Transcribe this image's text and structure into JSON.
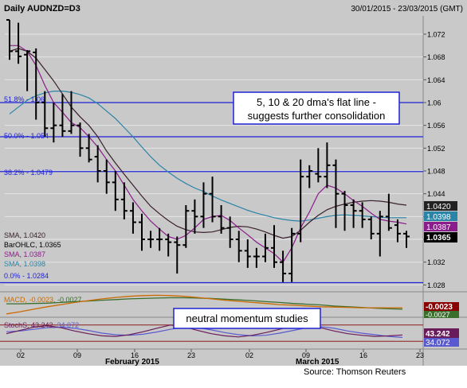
{
  "header": {
    "title": "Daily AUDNZD=D3",
    "date_range": "30/01/2015 - 23/03/2015 (GMT)"
  },
  "colors": {
    "background": "#c9c9c9",
    "fib_line": "#1f23d6",
    "sma5": "#8b1c8c",
    "sma10": "#3a1f2e",
    "sma20": "#2a84a8",
    "ohlc": "#000000",
    "macd_main": "#cc6a00",
    "macd_signal": "#3a6e2c",
    "stoch_k": "#6a1b5a",
    "stoch_d": "#5a5ad0",
    "annotation_border": "#1f23d6"
  },
  "annotations": {
    "main": [
      "5, 10 & 20 dma's flat line -",
      "suggests further consolidation"
    ],
    "momentum": "neutral momentum studies"
  },
  "legend": {
    "sma1": "SMA, 1.0420",
    "barohlc": "BarOHLC, 1.0365",
    "sma2": "SMA, 1.0387",
    "sma3": "SMA, 1.0398"
  },
  "fib_labels": {
    "f518": "51.8% - 1.06",
    "f500": "50.0% - 1.054",
    "f382": "38.2% - 1.0479",
    "f0": "0.0% - 1.0284"
  },
  "price_tags": {
    "sma1": "1.0420",
    "sma3": "1.0398",
    "sma2": "1.0387",
    "close": "1.0365"
  },
  "macd": {
    "label_value": "MACD, -0.0023",
    "label_signal": ", -0.0027",
    "tag_main": "-0.0023",
    "tag_signal": "-0.0027"
  },
  "stoch": {
    "label_k": "StochS, 43.242",
    "label_d": ", 34.072",
    "tag_k": "43.242",
    "tag_d": "34.072"
  },
  "x_axis": {
    "day_ticks": [
      "02",
      "09",
      "16",
      "23",
      "02",
      "09",
      "16",
      "23"
    ],
    "months": [
      "February 2015",
      "March 2015"
    ]
  },
  "source": "Source: Thomson Reuters",
  "chart_data": {
    "type": "ohlc",
    "title": "Daily AUDNZD=D3",
    "ylim": [
      1.0268,
      1.0752
    ],
    "y_ticks": [
      "1.072",
      "1.068",
      "1.064",
      "1.06",
      "1.056",
      "1.052",
      "1.048",
      "1.044",
      "1.04",
      "1.036",
      "1.032",
      "1.028"
    ],
    "fibonacci_levels": [
      {
        "label": "51.8%",
        "value": 1.06
      },
      {
        "label": "50.0%",
        "value": 1.054
      },
      {
        "label": "38.2%",
        "value": 1.0479
      },
      {
        "label": "0.0%",
        "value": 1.0284
      }
    ],
    "bars": [
      {
        "o": 1.0745,
        "h": 1.0745,
        "l": 1.0675,
        "c": 1.069
      },
      {
        "o": 1.069,
        "h": 1.074,
        "l": 1.0668,
        "c": 1.0681
      },
      {
        "o": 1.0684,
        "h": 1.0692,
        "l": 1.062,
        "c": 1.069
      },
      {
        "o": 1.0688,
        "h": 1.0695,
        "l": 1.057,
        "c": 1.06
      },
      {
        "o": 1.06,
        "h": 1.062,
        "l": 1.054,
        "c": 1.0555
      },
      {
        "o": 1.0555,
        "h": 1.06,
        "l": 1.053,
        "c": 1.056
      },
      {
        "o": 1.056,
        "h": 1.0615,
        "l": 1.054,
        "c": 1.055
      },
      {
        "o": 1.055,
        "h": 1.062,
        "l": 1.0545,
        "c": 1.056
      },
      {
        "o": 1.056,
        "h": 1.0565,
        "l": 1.0505,
        "c": 1.052
      },
      {
        "o": 1.052,
        "h": 1.0545,
        "l": 1.0495,
        "c": 1.05
      },
      {
        "o": 1.0505,
        "h": 1.0525,
        "l": 1.046,
        "c": 1.048
      },
      {
        "o": 1.048,
        "h": 1.05,
        "l": 1.044,
        "c": 1.046
      },
      {
        "o": 1.046,
        "h": 1.048,
        "l": 1.041,
        "c": 1.043
      },
      {
        "o": 1.043,
        "h": 1.046,
        "l": 1.0395,
        "c": 1.041
      },
      {
        "o": 1.041,
        "h": 1.0425,
        "l": 1.037,
        "c": 1.039
      },
      {
        "o": 1.039,
        "h": 1.0405,
        "l": 1.034,
        "c": 1.036
      },
      {
        "o": 1.036,
        "h": 1.0375,
        "l": 1.0345,
        "c": 1.036
      },
      {
        "o": 1.036,
        "h": 1.038,
        "l": 1.034,
        "c": 1.036
      },
      {
        "o": 1.036,
        "h": 1.037,
        "l": 1.033,
        "c": 1.0355
      },
      {
        "o": 1.0355,
        "h": 1.0365,
        "l": 1.03,
        "c": 1.035
      },
      {
        "o": 1.035,
        "h": 1.042,
        "l": 1.0345,
        "c": 1.041
      },
      {
        "o": 1.041,
        "h": 1.043,
        "l": 1.037,
        "c": 1.04
      },
      {
        "o": 1.04,
        "h": 1.046,
        "l": 1.038,
        "c": 1.044
      },
      {
        "o": 1.044,
        "h": 1.047,
        "l": 1.039,
        "c": 1.04
      },
      {
        "o": 1.04,
        "h": 1.042,
        "l": 1.037,
        "c": 1.038
      },
      {
        "o": 1.038,
        "h": 1.04,
        "l": 1.0345,
        "c": 1.036
      },
      {
        "o": 1.036,
        "h": 1.0375,
        "l": 1.032,
        "c": 1.034
      },
      {
        "o": 1.034,
        "h": 1.036,
        "l": 1.031,
        "c": 1.033
      },
      {
        "o": 1.033,
        "h": 1.0345,
        "l": 1.031,
        "c": 1.033
      },
      {
        "o": 1.033,
        "h": 1.037,
        "l": 1.032,
        "c": 1.0345
      },
      {
        "o": 1.0345,
        "h": 1.0385,
        "l": 1.031,
        "c": 1.032
      },
      {
        "o": 1.032,
        "h": 1.034,
        "l": 1.0285,
        "c": 1.03
      },
      {
        "o": 1.03,
        "h": 1.038,
        "l": 1.0285,
        "c": 1.037
      },
      {
        "o": 1.037,
        "h": 1.05,
        "l": 1.0355,
        "c": 1.047
      },
      {
        "o": 1.047,
        "h": 1.049,
        "l": 1.045,
        "c": 1.048
      },
      {
        "o": 1.0475,
        "h": 1.052,
        "l": 1.046,
        "c": 1.047
      },
      {
        "o": 1.047,
        "h": 1.053,
        "l": 1.045,
        "c": 1.049
      },
      {
        "o": 1.049,
        "h": 1.05,
        "l": 1.038,
        "c": 1.044
      },
      {
        "o": 1.044,
        "h": 1.0445,
        "l": 1.0375,
        "c": 1.042
      },
      {
        "o": 1.042,
        "h": 1.043,
        "l": 1.038,
        "c": 1.041
      },
      {
        "o": 1.041,
        "h": 1.0425,
        "l": 1.038,
        "c": 1.0395
      },
      {
        "o": 1.0395,
        "h": 1.04,
        "l": 1.036,
        "c": 1.037
      },
      {
        "o": 1.037,
        "h": 1.041,
        "l": 1.033,
        "c": 1.04
      },
      {
        "o": 1.04,
        "h": 1.044,
        "l": 1.0375,
        "c": 1.038
      },
      {
        "o": 1.0385,
        "h": 1.0395,
        "l": 1.0355,
        "c": 1.037
      },
      {
        "o": 1.037,
        "h": 1.0375,
        "l": 1.0345,
        "c": 1.0365
      }
    ],
    "sma_20": [
      1.058,
      1.0592,
      1.0604,
      1.0612,
      1.0617,
      1.062,
      1.062,
      1.0618,
      1.0614,
      1.0608,
      1.0598,
      1.0585,
      1.0572,
      1.0556,
      1.054,
      1.0522,
      1.0505,
      1.049,
      1.0478,
      1.0467,
      1.0458,
      1.045,
      1.0444,
      1.0436,
      1.0429,
      1.0423,
      1.0417,
      1.0411,
      1.0406,
      1.0402,
      1.0398,
      1.0395,
      1.0393,
      1.0392,
      1.0394,
      1.0397,
      1.04,
      1.0402,
      1.0403,
      1.0402,
      1.0401,
      1.04,
      1.0399,
      1.0398,
      1.0398,
      1.0398
    ],
    "sma_10": [
      1.069,
      1.0695,
      1.069,
      1.0678,
      1.0658,
      1.0638,
      1.0615,
      1.0592,
      1.0575,
      1.056,
      1.054,
      1.0515,
      1.0494,
      1.0474,
      1.0455,
      1.0436,
      1.0418,
      1.0405,
      1.0393,
      1.0383,
      1.0377,
      1.0373,
      1.0372,
      1.0373,
      1.0377,
      1.0381,
      1.0383,
      1.0382,
      1.0378,
      1.0373,
      1.0367,
      1.0362,
      1.0365,
      1.0376,
      1.039,
      1.0402,
      1.0412,
      1.0418,
      1.0422,
      1.0425,
      1.0427,
      1.0428,
      1.0427,
      1.0425,
      1.0422,
      1.042
    ],
    "sma_5": [
      1.07,
      1.07,
      1.069,
      1.0665,
      1.063,
      1.06,
      1.0583,
      1.0565,
      1.0556,
      1.054,
      1.0522,
      1.05,
      1.048,
      1.0455,
      1.043,
      1.041,
      1.0392,
      1.0378,
      1.0365,
      1.036,
      1.0367,
      1.038,
      1.0395,
      1.04,
      1.0402,
      1.0393,
      1.038,
      1.0368,
      1.0355,
      1.0345,
      1.0335,
      1.032,
      1.0345,
      1.038,
      1.0408,
      1.044,
      1.0455,
      1.045,
      1.044,
      1.0428,
      1.0418,
      1.0406,
      1.0395,
      1.0392,
      1.039,
      1.0387
    ],
    "macd_main": [
      -0.004,
      -0.0034,
      -0.0027,
      -0.002,
      -0.0014,
      -0.0008,
      -0.0003,
      0.0002,
      0.0006,
      0.0009,
      0.0011,
      0.0012,
      0.0011,
      0.0009,
      0.0006,
      0.0002,
      -0.0002,
      -0.0005,
      -0.0008,
      -0.0011,
      -0.0014,
      -0.0016,
      -0.0018,
      -0.002,
      -0.0021,
      -0.0022,
      -0.0023,
      -0.0023,
      -0.0023,
      -0.0023
    ],
    "macd_signal": [
      -0.0012,
      -0.0012,
      -0.0011,
      -0.001,
      -0.0008,
      -0.0006,
      -0.0004,
      -0.0002,
      0.0,
      0.0002,
      0.0003,
      0.0004,
      0.0005,
      0.0005,
      0.0004,
      0.0003,
      0.0001,
      -0.0001,
      -0.0003,
      -0.0006,
      -0.0008,
      -0.0011,
      -0.0013,
      -0.0015,
      -0.0018,
      -0.002,
      -0.0022,
      -0.0024,
      -0.0026,
      -0.0027
    ],
    "stoch_k": [
      48,
      60,
      72,
      78,
      70,
      58,
      48,
      40,
      38,
      44,
      55,
      68,
      80,
      74,
      60,
      48,
      40,
      36,
      42,
      52,
      64,
      78,
      82,
      70,
      58,
      48,
      42,
      38,
      40,
      43.242
    ],
    "stoch_d": [
      55,
      58,
      64,
      70,
      72,
      68,
      60,
      50,
      44,
      42,
      46,
      54,
      64,
      72,
      70,
      62,
      52,
      44,
      40,
      42,
      50,
      60,
      70,
      74,
      68,
      58,
      50,
      44,
      38,
      34.072
    ]
  }
}
